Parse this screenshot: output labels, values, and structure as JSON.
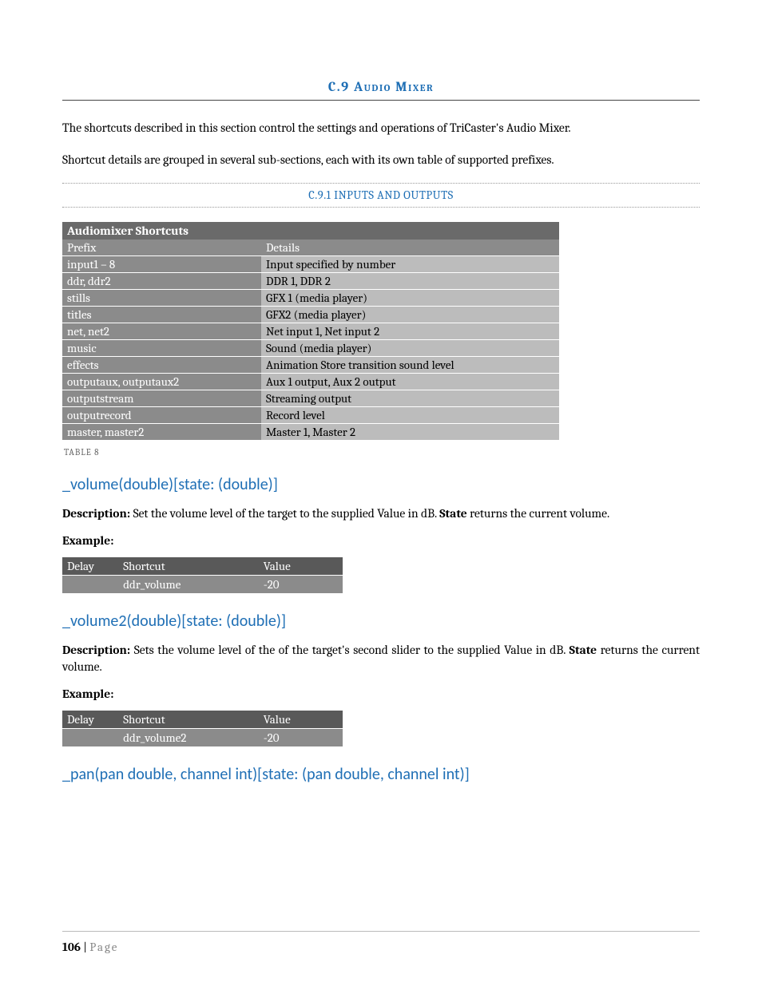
{
  "section": {
    "number": "C.9",
    "title": "Audio Mixer"
  },
  "intro": {
    "p1": "The shortcuts described in this section control the settings and operations of TriCaster's Audio Mixer.",
    "p2": "Shortcut details are grouped in several sub-sections, each with its own table of supported prefixes."
  },
  "subsection": {
    "number": "C.9.1",
    "title": "INPUTS AND OUTPUTS"
  },
  "shortcuts_table": {
    "title": "Audiomixer Shortcuts",
    "header": {
      "prefix": "Prefix",
      "details": "Details"
    },
    "rows": [
      {
        "prefix": "input1 – 8",
        "details": "Input specified by number"
      },
      {
        "prefix": "ddr, ddr2",
        "details": "DDR 1, DDR 2"
      },
      {
        "prefix": "stills",
        "details": "GFX 1 (media player)"
      },
      {
        "prefix": "titles",
        "details": "GFX2 (media player)"
      },
      {
        "prefix": "net, net2",
        "details": "Net input 1, Net input 2"
      },
      {
        "prefix": "music",
        "details": "Sound (media player)"
      },
      {
        "prefix": "effects",
        "details": "Animation Store transition sound level"
      },
      {
        "prefix": "outputaux, outputaux2",
        "details": "Aux 1 output, Aux 2 output"
      },
      {
        "prefix": "outputstream",
        "details": "Streaming output"
      },
      {
        "prefix": "outputrecord",
        "details": "Record level"
      },
      {
        "prefix": "master, master2",
        "details": "Master 1, Master 2"
      }
    ],
    "caption": "TABLE 8"
  },
  "api1": {
    "heading": "_volume(double)[state: (double)]",
    "desc_label": "Description:",
    "desc_rest": " Set the volume level of the target to the supplied Value in dB. ",
    "state_word": "State",
    "desc_tail": " returns the current volume.",
    "example_label": "Example:",
    "example": {
      "headers": {
        "delay": "Delay",
        "shortcut": "Shortcut",
        "value": "Value"
      },
      "row": {
        "delay": "",
        "shortcut": "ddr_volume",
        "value": "-20"
      }
    }
  },
  "api2": {
    "heading": "_volume2(double)[state: (double)]",
    "desc_label": "Description:",
    "desc_rest": " Sets the volume level of the of the target's second slider to the supplied Value in dB. ",
    "state_word": "State",
    "desc_tail": " returns the current volume.",
    "example_label": "Example:",
    "example": {
      "headers": {
        "delay": "Delay",
        "shortcut": "Shortcut",
        "value": "Value"
      },
      "row": {
        "delay": "",
        "shortcut": "ddr_volume2",
        "value": "-20"
      }
    }
  },
  "api3": {
    "heading": "_pan(pan double, channel int)[state: (pan double, channel int)]"
  },
  "footer": {
    "page_num": "106",
    "sep": " | ",
    "word": "Page"
  }
}
